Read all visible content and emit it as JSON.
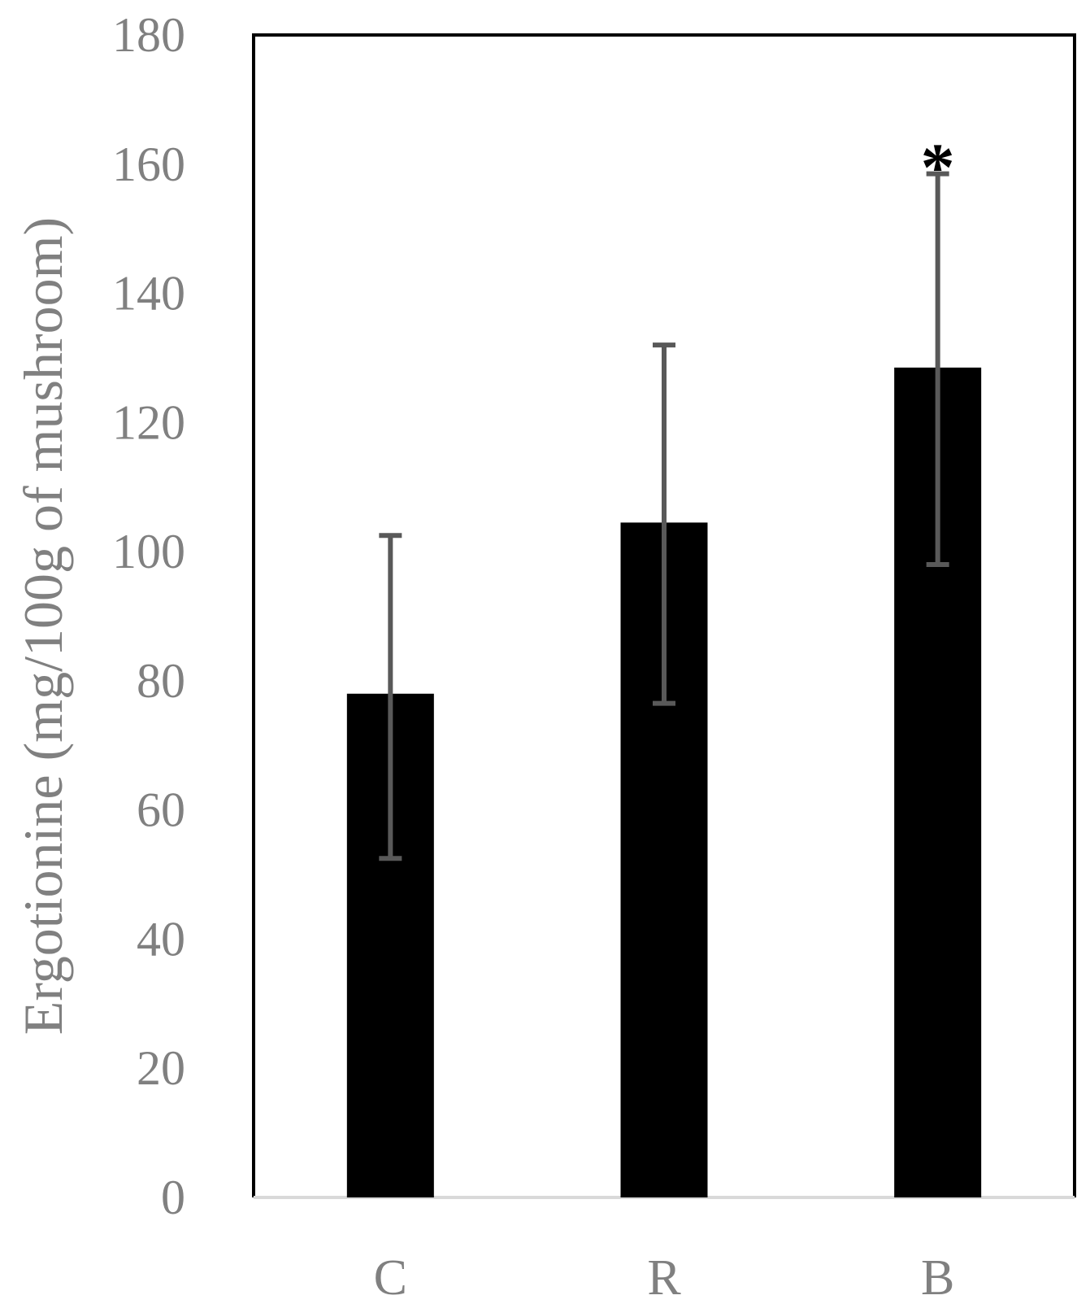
{
  "chart_data": {
    "type": "bar",
    "categories": [
      "C",
      "R",
      "B"
    ],
    "values": [
      78,
      104.5,
      128.5
    ],
    "error_bars": [
      {
        "low": 52.5,
        "high": 102.5
      },
      {
        "low": 76.5,
        "high": 132
      },
      {
        "low": 98,
        "high": 158.5
      }
    ],
    "annotations": [
      {
        "category": "B",
        "text": "*"
      }
    ],
    "ylabel": "Ergotionine (mg/100g of mushroom)",
    "xlabel": "",
    "ylim": [
      0,
      180
    ],
    "yticks": [
      0,
      20,
      40,
      60,
      80,
      100,
      120,
      140,
      160,
      180
    ],
    "grid": false,
    "legend": "none",
    "colors": {
      "bar": "#000000",
      "error_bar": "#595959",
      "tick_label": "#808080",
      "frame": "#000000",
      "baseline": "#d9d9d9",
      "annotation": "#000000"
    }
  }
}
